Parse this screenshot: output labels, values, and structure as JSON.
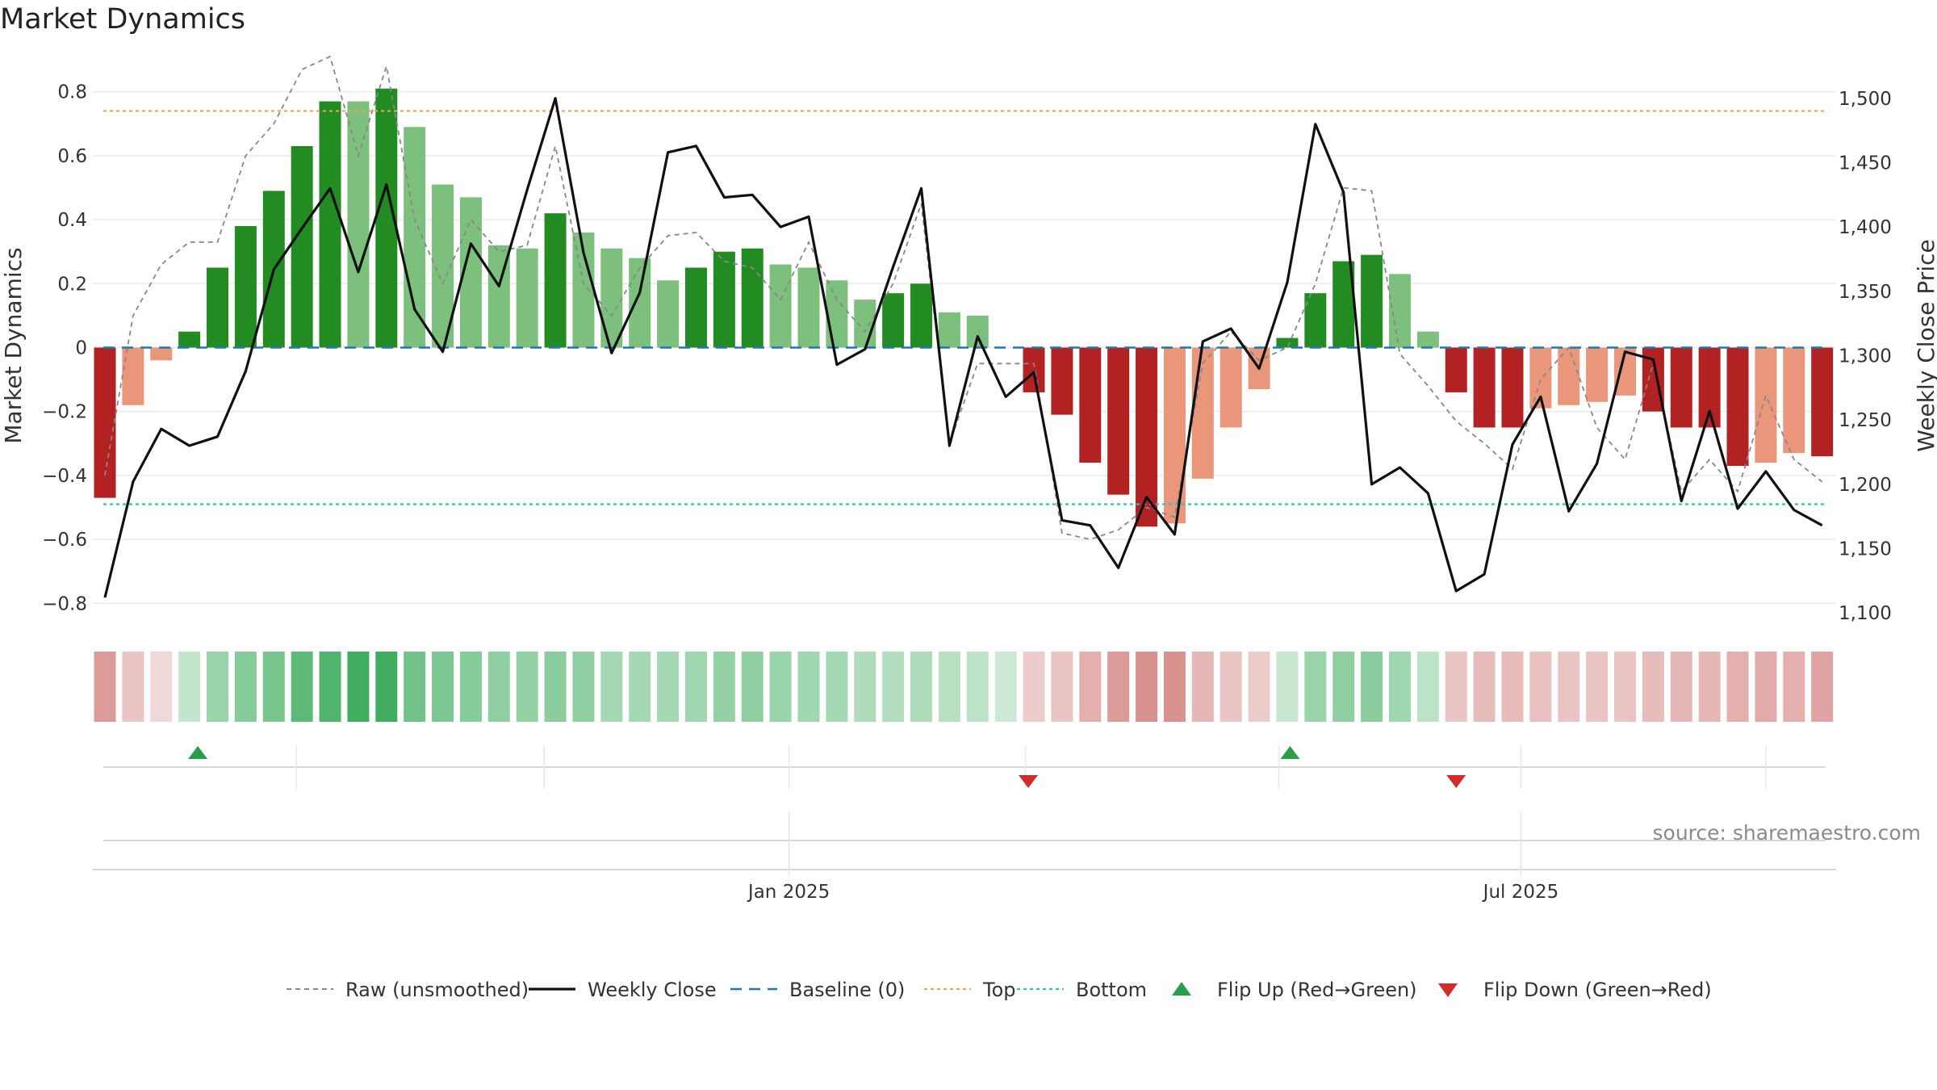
{
  "title": "Market Dynamics",
  "source": "source: sharemaestro.com",
  "chart_data": {
    "type": "bar",
    "ylabel_left": "Market Dynamics",
    "ylabel_right": "Weekly Close Price",
    "ylim_left": [
      -0.87,
      0.88
    ],
    "ylim_right": [
      1090,
      1525
    ],
    "left_ticks": [
      -0.8,
      -0.6,
      -0.4,
      -0.2,
      0,
      0.2,
      0.4,
      0.6,
      0.8
    ],
    "right_ticks": [
      1100,
      1150,
      1200,
      1250,
      1300,
      1350,
      1400,
      1450,
      1500
    ],
    "right_tick_labels": [
      "1,100",
      "1,150",
      "1,200",
      "1,250",
      "1,300",
      "1,350",
      "1,400",
      "1,450",
      "1,500"
    ],
    "x_labels": [
      {
        "label": "Jan 2025",
        "week": 24.3
      },
      {
        "label": "Jul 2025",
        "week": 50.3
      }
    ],
    "minor_x_weeks": [
      6.8,
      15.6,
      24.3,
      32.7,
      41.7,
      50.3,
      59.0
    ],
    "top_level": 0.74,
    "bottom_level": -0.49,
    "baseline": 0,
    "values": [
      -0.47,
      -0.18,
      -0.04,
      0.05,
      0.25,
      0.38,
      0.49,
      0.63,
      0.77,
      0.77,
      0.81,
      0.69,
      0.51,
      0.47,
      0.32,
      0.31,
      0.42,
      0.36,
      0.31,
      0.28,
      0.21,
      0.25,
      0.3,
      0.31,
      0.26,
      0.25,
      0.21,
      0.15,
      0.17,
      0.2,
      0.11,
      0.1,
      0.0,
      -0.14,
      -0.21,
      -0.36,
      -0.46,
      -0.56,
      -0.55,
      -0.41,
      -0.25,
      -0.13,
      0.03,
      0.17,
      0.27,
      0.29,
      0.23,
      0.05,
      -0.14,
      -0.25,
      -0.25,
      -0.19,
      -0.18,
      -0.17,
      -0.15,
      -0.2,
      -0.25,
      -0.25,
      -0.37,
      -0.36,
      -0.33,
      -0.34
    ],
    "bar_shades": [
      "dark",
      "light",
      "light",
      "dark",
      "dark",
      "dark",
      "dark",
      "dark",
      "dark",
      "light",
      "dark",
      "light",
      "light",
      "light",
      "light",
      "light",
      "dark",
      "light",
      "light",
      "light",
      "light",
      "dark",
      "dark",
      "dark",
      "light",
      "light",
      "light",
      "light",
      "dark",
      "dark",
      "light",
      "light",
      "light",
      "dark",
      "dark",
      "dark",
      "dark",
      "dark",
      "light",
      "light",
      "light",
      "light",
      "dark",
      "dark",
      "dark",
      "dark",
      "light",
      "light",
      "dark",
      "dark",
      "dark",
      "light",
      "light",
      "light",
      "light",
      "dark",
      "dark",
      "dark",
      "dark",
      "light",
      "light",
      "dark"
    ],
    "raw": [
      -0.4,
      0.1,
      0.26,
      0.33,
      0.33,
      0.6,
      0.7,
      0.87,
      0.95,
      0.6,
      0.88,
      0.4,
      0.2,
      0.4,
      0.3,
      0.32,
      0.63,
      0.2,
      0.1,
      0.25,
      0.35,
      0.36,
      0.27,
      0.25,
      0.15,
      0.33,
      0.15,
      0.05,
      0.2,
      0.45,
      -0.3,
      -0.05,
      -0.05,
      -0.05,
      -0.58,
      -0.6,
      -0.57,
      -0.5,
      -0.53,
      -0.05,
      0.05,
      -0.04,
      0.0,
      0.2,
      0.5,
      0.49,
      -0.02,
      -0.12,
      -0.23,
      -0.3,
      -0.38,
      -0.1,
      0.0,
      -0.25,
      -0.35,
      -0.05,
      -0.45,
      -0.35,
      -0.45,
      -0.15,
      -0.35,
      -0.42
    ],
    "weekly_close": [
      1112,
      1202,
      1243,
      1230,
      1237,
      1288,
      1367,
      1399,
      1430,
      1365,
      1433,
      1336,
      1303,
      1387,
      1354,
      1429,
      1500,
      1380,
      1302,
      1349,
      1458,
      1463,
      1423,
      1425,
      1400,
      1408,
      1293,
      1305,
      1369,
      1430,
      1230,
      1315,
      1268,
      1287,
      1172,
      1168,
      1135,
      1190,
      1161,
      1311,
      1321,
      1290,
      1357,
      1480,
      1427,
      1200,
      1213,
      1193,
      1117,
      1130,
      1231,
      1268,
      1179,
      1216,
      1303,
      1297,
      1187,
      1257,
      1181,
      1210,
      1180,
      1168
    ],
    "intensity": [
      -0.55,
      -0.3,
      -0.18,
      0.25,
      0.45,
      0.55,
      0.62,
      0.75,
      0.82,
      0.9,
      0.9,
      0.65,
      0.6,
      0.55,
      0.5,
      0.48,
      0.52,
      0.5,
      0.4,
      0.4,
      0.4,
      0.42,
      0.48,
      0.5,
      0.45,
      0.42,
      0.4,
      0.35,
      0.33,
      0.35,
      0.3,
      0.28,
      0.2,
      -0.25,
      -0.3,
      -0.42,
      -0.55,
      -0.6,
      -0.6,
      -0.38,
      -0.3,
      -0.25,
      0.22,
      0.45,
      0.5,
      0.52,
      0.42,
      0.28,
      -0.3,
      -0.35,
      -0.35,
      -0.32,
      -0.3,
      -0.3,
      -0.3,
      -0.35,
      -0.38,
      -0.38,
      -0.42,
      -0.45,
      -0.42,
      -0.5
    ],
    "flips": [
      {
        "week": 3.3,
        "direction": "up"
      },
      {
        "week": 32.8,
        "direction": "down"
      },
      {
        "week": 42.1,
        "direction": "up"
      },
      {
        "week": 48.0,
        "direction": "down"
      }
    ],
    "legend": [
      {
        "label": "Raw (unsmoothed)",
        "style": "dashed-gray"
      },
      {
        "label": "Weekly Close",
        "style": "solid-black"
      },
      {
        "label": "Baseline (0)",
        "style": "dashed-blue"
      },
      {
        "label": "Top",
        "style": "dotted-orange"
      },
      {
        "label": "Bottom",
        "style": "dotted-teal"
      },
      {
        "label": "Flip Up (Red→Green)",
        "style": "triangle-up"
      },
      {
        "label": "Flip Down (Green→Red)",
        "style": "triangle-down"
      }
    ],
    "colors": {
      "green_dark": "#228b22",
      "green_light": "#7dbf7d",
      "red_dark": "#b22222",
      "red_light": "#e9967a",
      "raw_line": "#888888",
      "close_line": "#111111",
      "baseline": "#1f77b4",
      "top_line": "#e8a55a",
      "bottom_line": "#2ec4b6",
      "flip_up": "#2a9d4a",
      "flip_down": "#d22b2b"
    }
  }
}
